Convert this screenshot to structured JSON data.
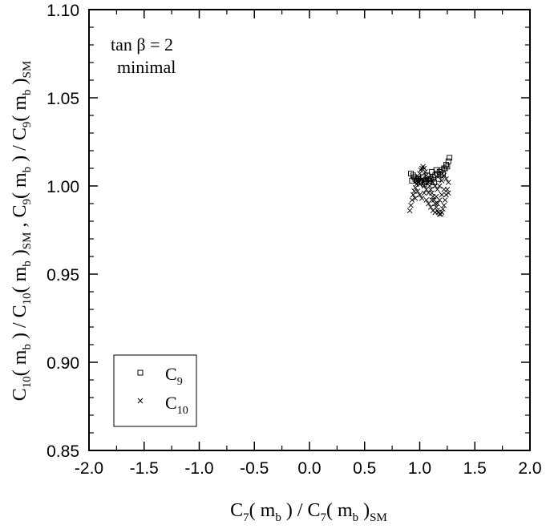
{
  "chart_data": {
    "type": "scatter",
    "xlabel": {
      "base": "C",
      "sub1": "7",
      "mid1": "( m",
      "sub2": "b",
      "mid2": " ) / C",
      "sub3": "7",
      "mid3": "( m",
      "sub4": "b",
      "mid4": " )",
      "sub5": "SM"
    },
    "ylabel": {
      "t1": "C",
      "s1": "10",
      "t2": "( m",
      "s2": "b",
      "t3": " ) / C",
      "s3": "10",
      "t4": "( m",
      "s4": "b",
      "t5": " )",
      "s5": "SM",
      "t6": " ,  C",
      "s6": "9",
      "t7": "( m",
      "s7": "b",
      "t8": " ) / C",
      "s8": "9",
      "t9": "( m",
      "s9": "b",
      "t10": " )",
      "s10": "SM"
    },
    "annotation": {
      "line1": "tan β =  2",
      "line2": "minimal"
    },
    "xlim": [
      -2.0,
      2.0
    ],
    "ylim": [
      0.85,
      1.1
    ],
    "x_ticks": [
      "-2.0",
      "-1.5",
      "-1.0",
      "-0.5",
      "0.0",
      "0.5",
      "1.0",
      "1.5",
      "2.0"
    ],
    "y_ticks": [
      "0.85",
      "0.90",
      "0.95",
      "1.00",
      "1.05",
      "1.10"
    ],
    "legend": {
      "position": "bottom-left",
      "entries": [
        {
          "base": "C",
          "sub": "9",
          "marker": "square"
        },
        {
          "base": "C",
          "sub": "10",
          "marker": "cross"
        }
      ]
    },
    "series": [
      {
        "name": "C9",
        "marker": "square",
        "points": [
          [
            0.92,
            1.007
          ],
          [
            0.94,
            1.006
          ],
          [
            0.95,
            1.005
          ],
          [
            0.96,
            1.004
          ],
          [
            0.97,
            1.003
          ],
          [
            0.98,
            1.003
          ],
          [
            1.0,
            1.002
          ],
          [
            1.02,
            1.002
          ],
          [
            1.04,
            1.001
          ],
          [
            1.05,
            1.002
          ],
          [
            1.06,
            1.003
          ],
          [
            1.08,
            1.003
          ],
          [
            1.1,
            1.004
          ],
          [
            1.12,
            1.005
          ],
          [
            1.14,
            1.006
          ],
          [
            1.16,
            1.007
          ],
          [
            1.18,
            1.008
          ],
          [
            1.2,
            1.009
          ],
          [
            1.22,
            1.01
          ],
          [
            1.24,
            1.012
          ],
          [
            1.26,
            1.014
          ],
          [
            1.27,
            1.016
          ],
          [
            0.93,
            1.003
          ],
          [
            0.99,
            1.004
          ],
          [
            1.03,
            1.005
          ],
          [
            1.07,
            1.006
          ],
          [
            1.11,
            1.008
          ],
          [
            1.15,
            1.009
          ],
          [
            1.19,
            1.006
          ],
          [
            1.23,
            1.01
          ],
          [
            1.25,
            1.011
          ],
          [
            1.01,
            1.003
          ],
          [
            1.09,
            1.004
          ],
          [
            1.13,
            1.002
          ],
          [
            1.17,
            1.004
          ],
          [
            1.21,
            1.007
          ]
        ]
      },
      {
        "name": "C10",
        "marker": "cross",
        "points": [
          [
            0.91,
            0.986
          ],
          [
            0.92,
            0.989
          ],
          [
            0.93,
            0.992
          ],
          [
            0.94,
            0.995
          ],
          [
            0.95,
            0.997
          ],
          [
            0.96,
            0.999
          ],
          [
            0.97,
            1.001
          ],
          [
            0.98,
            1.003
          ],
          [
            0.99,
            1.005
          ],
          [
            1.0,
            1.007
          ],
          [
            1.01,
            1.009
          ],
          [
            1.02,
            1.01
          ],
          [
            1.03,
            1.011
          ],
          [
            1.04,
            1.01
          ],
          [
            1.05,
            1.008
          ],
          [
            1.06,
            1.006
          ],
          [
            1.07,
            1.004
          ],
          [
            1.08,
            1.002
          ],
          [
            1.09,
            1.0
          ],
          [
            1.1,
            0.998
          ],
          [
            1.11,
            0.996
          ],
          [
            1.12,
            0.994
          ],
          [
            1.13,
            0.992
          ],
          [
            1.14,
            0.99
          ],
          [
            1.15,
            0.988
          ],
          [
            1.16,
            0.986
          ],
          [
            1.17,
            0.985
          ],
          [
            1.18,
            0.984
          ],
          [
            1.19,
            0.984
          ],
          [
            1.2,
            0.985
          ],
          [
            1.21,
            0.987
          ],
          [
            1.22,
            0.989
          ],
          [
            1.23,
            0.992
          ],
          [
            1.24,
            0.995
          ],
          [
            1.25,
            0.998
          ],
          [
            1.26,
            1.002
          ],
          [
            1.0,
            0.995
          ],
          [
            1.02,
            0.993
          ],
          [
            1.04,
            0.996
          ],
          [
            1.06,
            0.992
          ],
          [
            1.08,
            0.99
          ],
          [
            1.1,
            0.988
          ],
          [
            1.12,
            0.986
          ],
          [
            1.14,
            0.985
          ],
          [
            1.16,
            0.99
          ],
          [
            1.18,
            0.992
          ],
          [
            1.2,
            0.995
          ],
          [
            1.22,
            0.998
          ],
          [
            1.04,
            1.0
          ],
          [
            1.06,
            0.998
          ],
          [
            1.08,
            0.996
          ],
          [
            1.1,
            1.004
          ],
          [
            1.12,
            1.002
          ],
          [
            1.14,
            1.0
          ],
          [
            1.16,
            0.998
          ],
          [
            1.18,
            1.0
          ],
          [
            1.2,
            1.003
          ],
          [
            1.22,
            1.006
          ],
          [
            0.98,
            0.997
          ],
          [
            0.96,
            0.993
          ],
          [
            1.0,
            1.001
          ],
          [
            1.02,
            1.004
          ],
          [
            1.24,
            1.004
          ],
          [
            1.26,
            0.996
          ],
          [
            1.15,
            0.994
          ],
          [
            1.11,
            0.992
          ]
        ]
      }
    ]
  }
}
